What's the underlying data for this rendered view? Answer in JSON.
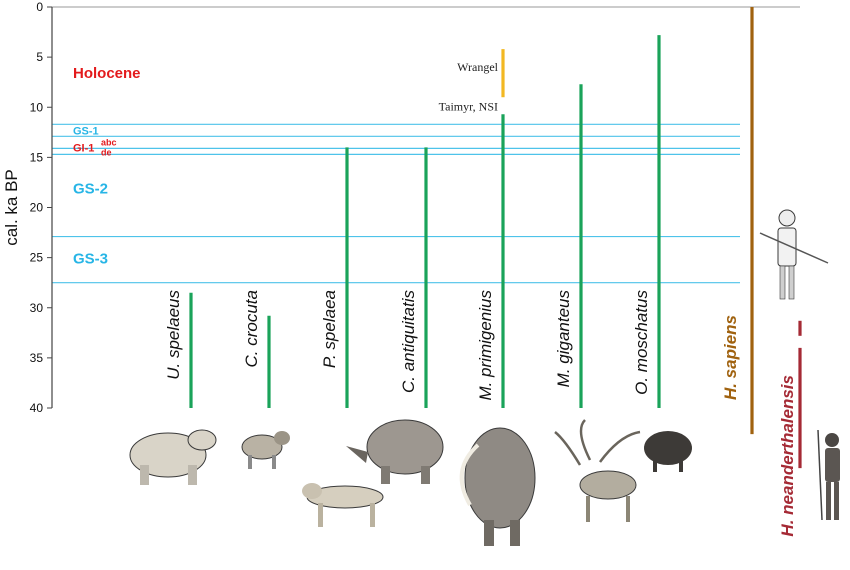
{
  "chart_data": {
    "type": "timeline",
    "ylabel": "cal. ka BP",
    "ylim": [
      0,
      40
    ],
    "y_ticks": [
      0,
      5,
      10,
      15,
      20,
      25,
      30,
      35,
      40
    ],
    "climate_boundaries_ka": [
      11.7,
      12.9,
      14.1,
      14.7,
      22.9,
      27.5
    ],
    "climate_labels": [
      {
        "text": "Holocene",
        "y": 6.5,
        "color": "#e31a1c",
        "size": "large"
      },
      {
        "text": "GS-1",
        "y": 12.3,
        "color": "#27b5e6",
        "size": "small"
      },
      {
        "text": "GI-1",
        "sup": "abc",
        "sub": "de",
        "y": 14.0,
        "color": "#e31a1c",
        "size": "small"
      },
      {
        "text": "GS-2",
        "y": 18.0,
        "color": "#27b5e6",
        "size": "large"
      },
      {
        "text": "GS-3",
        "y": 25.0,
        "color": "#27b5e6",
        "size": "large"
      }
    ],
    "species": [
      {
        "name": "U. spelaeus",
        "start_ka": 28.5,
        "end_ka": 40,
        "color": "#1aa35a"
      },
      {
        "name": "C. crocuta",
        "start_ka": 30.8,
        "end_ka": 40,
        "color": "#1aa35a"
      },
      {
        "name": "P. spelaea",
        "start_ka": 14.0,
        "end_ka": 40,
        "color": "#1aa35a"
      },
      {
        "name": "C. antiquitatis",
        "start_ka": 14.0,
        "end_ka": 40,
        "color": "#1aa35a"
      },
      {
        "name": "M. primigenius",
        "start_ka": 10.7,
        "end_ka": 40,
        "color": "#1aa35a",
        "extra": {
          "name": "Wrangel",
          "start_ka": 4.2,
          "end_ka": 9.0,
          "color": "#f2b822"
        },
        "annotation": "Taimyr, NSI"
      },
      {
        "name": "M. giganteus",
        "start_ka": 7.7,
        "end_ka": 40,
        "color": "#1aa35a"
      },
      {
        "name": "O. moschatus",
        "start_ka": 2.8,
        "end_ka": 40,
        "color": "#1aa35a"
      }
    ],
    "humans": [
      {
        "name": "H. sapiens",
        "color": "#a0620f",
        "start_ka": 0,
        "end_ka": 42.6
      },
      {
        "name": "H. neanderthalensis",
        "color": "#a52a35",
        "segments": [
          [
            31.3,
            32.8
          ],
          [
            34.0,
            46.0
          ]
        ]
      }
    ]
  }
}
